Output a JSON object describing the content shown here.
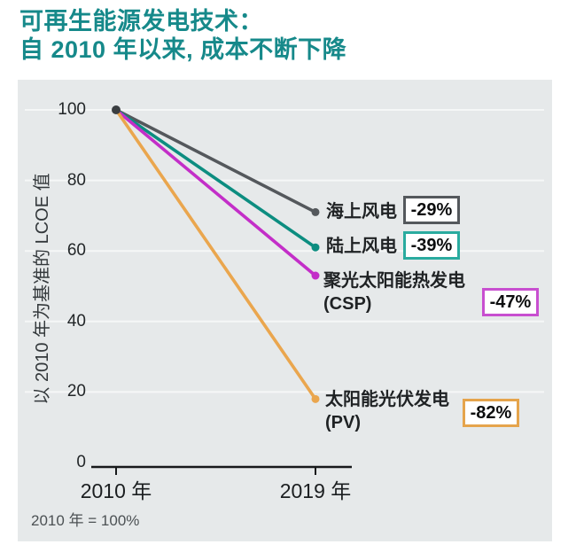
{
  "title": {
    "line1": "可再生能源发电技术：",
    "line2": "自 2010 年以来, 成本不断下降"
  },
  "colors": {
    "title_accent": "#16898a",
    "panel_background": "#e6e9ea",
    "axis": "#17191b",
    "gridline": "#f5f7f7",
    "start_dot": "#3a3e41"
  },
  "chart_data": {
    "type": "line",
    "title": "可再生能源发电技术：自 2010 年以来, 成本不断下降",
    "xlabel": "",
    "ylabel": "以 2010 年为基准的 LCOE 值",
    "x_categories": [
      "2010 年",
      "2019 年"
    ],
    "yticks": [
      100,
      80,
      60,
      40,
      20,
      0
    ],
    "ylim": [
      0,
      100
    ],
    "grid": true,
    "legend_position": "right-of-line-endpoints",
    "footnote": "2010 年 = 100%",
    "series": [
      {
        "name": "海上风电",
        "label_lines": [
          "海上风电",
          ""
        ],
        "values": [
          100,
          71
        ],
        "change": "-29%",
        "color": "#54585c",
        "badge_border": "#54585c"
      },
      {
        "name": "陆上风电",
        "label_lines": [
          "陆上风电",
          ""
        ],
        "values": [
          100,
          61
        ],
        "change": "-39%",
        "color": "#0c8d80",
        "badge_border": "#2aab9f"
      },
      {
        "name": "聚光太阳能热发电 (CSP)",
        "label_lines": [
          "聚光太阳能热发电",
          "(CSP)"
        ],
        "values": [
          100,
          53
        ],
        "change": "-47%",
        "color": "#c32ec8",
        "badge_border": "#c84fd0"
      },
      {
        "name": "太阳能光伏发电 (PV)",
        "label_lines": [
          "太阳能光伏发电",
          "(PV)"
        ],
        "values": [
          100,
          18
        ],
        "change": "-82%",
        "color": "#eaa64e",
        "badge_border": "#e5a44c"
      }
    ]
  }
}
